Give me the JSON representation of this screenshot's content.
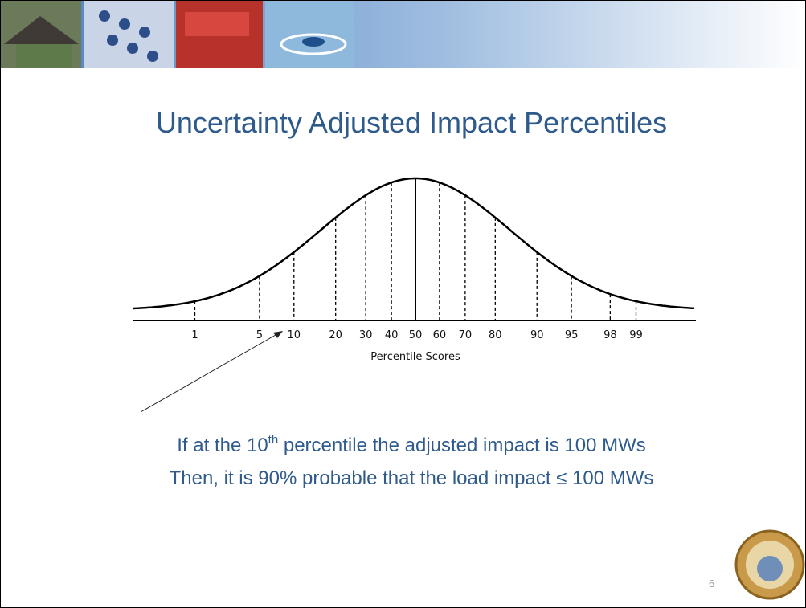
{
  "title": "Uncertainty Adjusted Impact Percentiles",
  "diagram": {
    "xticks": [
      1,
      5,
      10,
      20,
      30,
      40,
      50,
      60,
      70,
      80,
      90,
      95,
      98,
      99
    ],
    "xlabel": "Percentile Scores"
  },
  "caption": {
    "line1": [
      "If at the 10",
      "th",
      " percentile the adjusted impact is 100 MWs"
    ],
    "line2": "Then, it is 90% probable that the load impact ≤ 100 MWs"
  },
  "page_number": "6"
}
